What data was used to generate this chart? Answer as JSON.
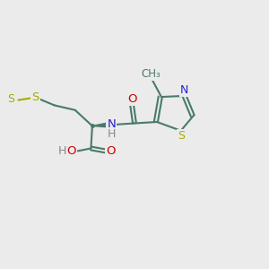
{
  "background_color": "#ebebeb",
  "bond_color": "#4a7a6a",
  "nitrogen_color": "#2222cc",
  "oxygen_color": "#cc0000",
  "sulfur_color": "#aaaa00",
  "hydrogen_color": "#888888",
  "figsize": [
    3.0,
    3.0
  ],
  "dpi": 100,
  "xlim": [
    0,
    10
  ],
  "ylim": [
    0,
    10
  ]
}
